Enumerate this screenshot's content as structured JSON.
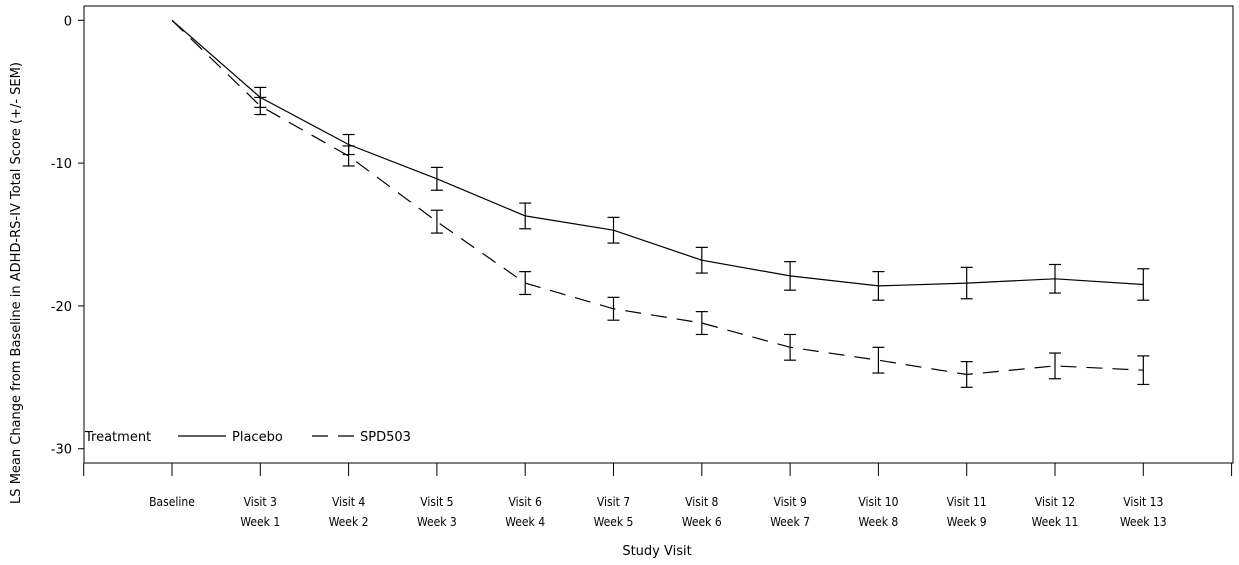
{
  "chart_data": {
    "type": "line",
    "xlabel": "Study Visit",
    "ylabel": "LS Mean Change from Baseline in ADHD-RS-IV Total Score (+/- SEM)",
    "ylim": [
      -31,
      1
    ],
    "yticks": [
      0,
      -10,
      -20,
      -30
    ],
    "grid": false,
    "categories": [
      [
        "Baseline",
        ""
      ],
      [
        "Visit 3",
        "Week 1"
      ],
      [
        "Visit 4",
        "Week 2"
      ],
      [
        "Visit 5",
        "Week 3"
      ],
      [
        "Visit 6",
        "Week 4"
      ],
      [
        "Visit 7",
        "Week 5"
      ],
      [
        "Visit 8",
        "Week 6"
      ],
      [
        "Visit 9",
        "Week 7"
      ],
      [
        "Visit 10",
        "Week 8"
      ],
      [
        "Visit 11",
        "Week 9"
      ],
      [
        "Visit 12",
        "Week 11"
      ],
      [
        "Visit 13",
        "Week 13"
      ]
    ],
    "legend": {
      "title": "Treatment",
      "position": "bottom-left",
      "entries": [
        "Placebo",
        "SPD503"
      ]
    },
    "series": [
      {
        "name": "Placebo",
        "style": "solid",
        "color": "#000000",
        "values": [
          0,
          -5.4,
          -8.7,
          -11.1,
          -13.7,
          -14.7,
          -16.8,
          -17.9,
          -18.6,
          -18.4,
          -18.1,
          -18.5
        ],
        "sem": [
          0,
          0.7,
          0.7,
          0.8,
          0.9,
          0.9,
          0.9,
          1.0,
          1.0,
          1.1,
          1.0,
          1.1
        ]
      },
      {
        "name": "SPD503",
        "style": "dashed",
        "color": "#000000",
        "values": [
          0,
          -6.0,
          -9.5,
          -14.1,
          -18.4,
          -20.2,
          -21.2,
          -22.9,
          -23.8,
          -24.8,
          -24.2,
          -24.5
        ],
        "sem": [
          0,
          0.6,
          0.7,
          0.8,
          0.8,
          0.8,
          0.8,
          0.9,
          0.9,
          0.9,
          0.9,
          1.0
        ]
      }
    ]
  }
}
